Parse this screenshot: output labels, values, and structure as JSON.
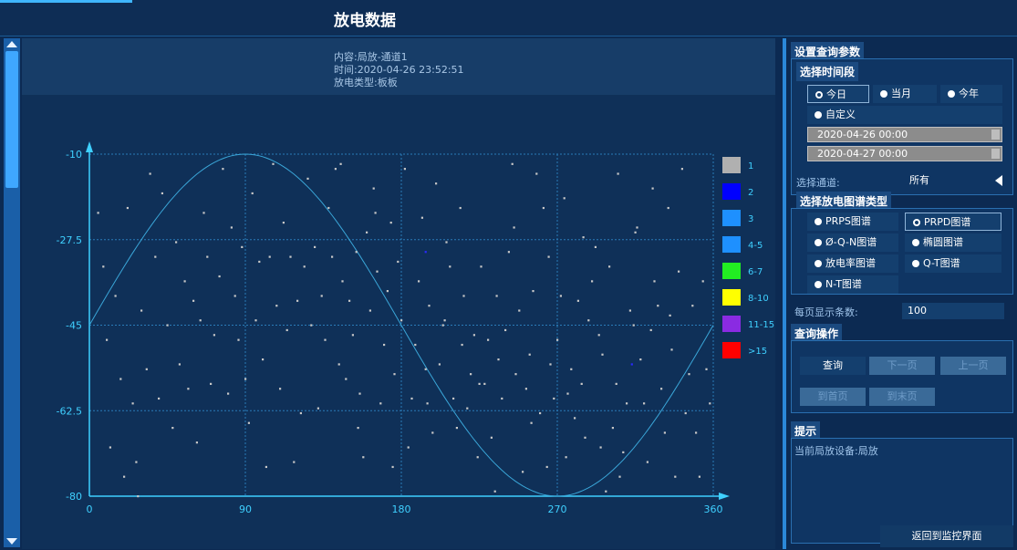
{
  "header": {
    "title": "放电数据"
  },
  "info": {
    "content": "内容:局放-通道1",
    "time": "时间:2020-04-26 23:52:51",
    "type": "放电类型:板板"
  },
  "legend": [
    {
      "label": "1",
      "color": "#b0b0b0"
    },
    {
      "label": "2",
      "color": "#0000ff"
    },
    {
      "label": "3",
      "color": "#1e90ff"
    },
    {
      "label": "4-5",
      "color": "#1e90ff"
    },
    {
      "label": "6-7",
      "color": "#22ee22"
    },
    {
      "label": "8-10",
      "color": "#ffff00"
    },
    {
      "label": "11-15",
      "color": "#8a2be2"
    },
    {
      "label": ">15",
      "color": "#ff0000"
    }
  ],
  "chart_data": {
    "type": "scatter",
    "title": "",
    "xlabel": "",
    "ylabel": "",
    "xlim": [
      0,
      360
    ],
    "ylim": [
      -80,
      -10
    ],
    "x_ticks": [
      "0",
      "90",
      "180",
      "270",
      "360"
    ],
    "y_ticks": [
      "-10",
      "-27.5",
      "-45",
      "-62.5",
      "-80"
    ],
    "grid": true,
    "reference_curve": "sine",
    "series": [
      {
        "color": "#c8c8c8",
        "points": [
          [
            5,
            -22
          ],
          [
            8,
            -33
          ],
          [
            10,
            -48
          ],
          [
            12,
            -70
          ],
          [
            15,
            -39
          ],
          [
            18,
            -56
          ],
          [
            20,
            -76
          ],
          [
            22,
            -21
          ],
          [
            25,
            -61
          ],
          [
            27,
            -73
          ],
          [
            28,
            -80
          ],
          [
            30,
            -42
          ],
          [
            33,
            -54
          ],
          [
            35,
            -14
          ],
          [
            38,
            -31
          ],
          [
            40,
            -60
          ],
          [
            42,
            -18
          ],
          [
            45,
            -45
          ],
          [
            48,
            -66
          ],
          [
            50,
            -28
          ],
          [
            52,
            -53
          ],
          [
            55,
            -36
          ],
          [
            57,
            -58
          ],
          [
            60,
            -40
          ],
          [
            62,
            -69
          ],
          [
            64,
            -44
          ],
          [
            66,
            -22
          ],
          [
            68,
            -31
          ],
          [
            70,
            -57
          ],
          [
            72,
            -47
          ],
          [
            75,
            -35
          ],
          [
            77,
            -13
          ],
          [
            80,
            -59
          ],
          [
            82,
            -25
          ],
          [
            84,
            -39
          ],
          [
            86,
            -48
          ],
          [
            88,
            -29
          ],
          [
            90,
            -56
          ],
          [
            92,
            -65
          ],
          [
            94,
            -18
          ],
          [
            96,
            -44
          ],
          [
            98,
            -32
          ],
          [
            100,
            -52
          ],
          [
            102,
            -74
          ],
          [
            104,
            -31
          ],
          [
            106,
            -12
          ],
          [
            108,
            -41
          ],
          [
            110,
            -58
          ],
          [
            112,
            -24
          ],
          [
            114,
            -46
          ],
          [
            116,
            -31
          ],
          [
            118,
            -73
          ],
          [
            120,
            -40
          ],
          [
            122,
            -63
          ],
          [
            124,
            -33
          ],
          [
            126,
            -15
          ],
          [
            128,
            -45
          ],
          [
            130,
            -29
          ],
          [
            132,
            -62
          ],
          [
            134,
            -39
          ],
          [
            136,
            -48
          ],
          [
            138,
            -21
          ],
          [
            140,
            -31
          ],
          [
            142,
            -13
          ],
          [
            144,
            -53
          ],
          [
            146,
            -36
          ],
          [
            148,
            -56
          ],
          [
            150,
            -40
          ],
          [
            152,
            -47
          ],
          [
            154,
            -30
          ],
          [
            156,
            -59
          ],
          [
            158,
            -72
          ],
          [
            160,
            -26
          ],
          [
            162,
            -42
          ],
          [
            164,
            -17
          ],
          [
            166,
            -34
          ],
          [
            168,
            -61
          ],
          [
            170,
            -49
          ],
          [
            172,
            -38
          ],
          [
            174,
            -24
          ],
          [
            176,
            -55
          ],
          [
            178,
            -32
          ],
          [
            180,
            -44
          ],
          [
            182,
            -13
          ],
          [
            184,
            -70
          ],
          [
            186,
            -60
          ],
          [
            188,
            -49
          ],
          [
            190,
            -36
          ],
          [
            192,
            -23
          ],
          [
            194,
            -54
          ],
          [
            196,
            -41
          ],
          [
            198,
            -67
          ],
          [
            200,
            -16
          ],
          [
            202,
            -53
          ],
          [
            204,
            -45
          ],
          [
            206,
            -28
          ],
          [
            208,
            -33
          ],
          [
            210,
            -60
          ],
          [
            212,
            -66
          ],
          [
            214,
            -21
          ],
          [
            216,
            -39
          ],
          [
            218,
            -62
          ],
          [
            220,
            -55
          ],
          [
            222,
            -47
          ],
          [
            224,
            -72
          ],
          [
            226,
            -33
          ],
          [
            228,
            -57
          ],
          [
            230,
            -48
          ],
          [
            232,
            -68
          ],
          [
            234,
            -79
          ],
          [
            236,
            -52
          ],
          [
            238,
            -60
          ],
          [
            240,
            -46
          ],
          [
            242,
            -30
          ],
          [
            244,
            -12
          ],
          [
            246,
            -55
          ],
          [
            248,
            -42
          ],
          [
            250,
            -75
          ],
          [
            252,
            -58
          ],
          [
            254,
            -51
          ],
          [
            256,
            -38
          ],
          [
            258,
            -14
          ],
          [
            260,
            -63
          ],
          [
            262,
            -21
          ],
          [
            264,
            -74
          ],
          [
            266,
            -53
          ],
          [
            268,
            -60
          ],
          [
            270,
            -48
          ],
          [
            272,
            -39
          ],
          [
            274,
            -19
          ],
          [
            276,
            -59
          ],
          [
            278,
            -54
          ],
          [
            280,
            -64
          ],
          [
            282,
            -40
          ],
          [
            284,
            -57
          ],
          [
            286,
            -68
          ],
          [
            288,
            -44
          ],
          [
            290,
            -36
          ],
          [
            292,
            -29
          ],
          [
            294,
            -47
          ],
          [
            296,
            -51
          ],
          [
            298,
            -79
          ],
          [
            300,
            -33
          ],
          [
            302,
            -66
          ],
          [
            304,
            -57
          ],
          [
            306,
            -76
          ],
          [
            308,
            -71
          ],
          [
            310,
            -61
          ],
          [
            312,
            -42
          ],
          [
            314,
            -45
          ],
          [
            316,
            -25
          ],
          [
            318,
            -52
          ],
          [
            320,
            -61
          ],
          [
            322,
            -73
          ],
          [
            324,
            -46
          ],
          [
            326,
            -36
          ],
          [
            328,
            -41
          ],
          [
            330,
            -58
          ],
          [
            332,
            -67
          ],
          [
            334,
            -21
          ],
          [
            336,
            -50
          ],
          [
            338,
            -76
          ],
          [
            340,
            -34
          ],
          [
            342,
            -13
          ],
          [
            344,
            -63
          ],
          [
            346,
            -55
          ],
          [
            348,
            -41
          ],
          [
            350,
            -67
          ],
          [
            352,
            -76
          ],
          [
            354,
            -36
          ],
          [
            356,
            -54
          ],
          [
            358,
            -61
          ],
          [
            145,
            -12
          ],
          [
            155,
            -66
          ],
          [
            165,
            -22
          ],
          [
            175,
            -74
          ],
          [
            195,
            -61
          ],
          [
            205,
            -44
          ],
          [
            215,
            -49
          ],
          [
            225,
            -57
          ],
          [
            235,
            -39
          ],
          [
            245,
            -25
          ],
          [
            255,
            -65
          ],
          [
            265,
            -31
          ],
          [
            275,
            -72
          ],
          [
            285,
            -27
          ],
          [
            295,
            -70
          ],
          [
            305,
            -14
          ],
          [
            315,
            -26
          ],
          [
            325,
            -17
          ],
          [
            335,
            -43
          ]
        ]
      },
      {
        "color": "#2a2aff",
        "points": [
          [
            313,
            -53
          ],
          [
            194,
            -30
          ]
        ]
      }
    ]
  },
  "panel": {
    "params_title": "设置查询参数",
    "time_title": "选择时间段",
    "time_opts": [
      "今日",
      "当月",
      "今年",
      "自定义"
    ],
    "date_from": "2020-04-26 00:00",
    "date_to": "2020-04-27 00:00",
    "channel_label": "选择通道:",
    "channel_value": "所有",
    "map_title": "选择放电图谱类型",
    "map_opts": [
      "PRPS图谱",
      "PRPD图谱",
      "Ø-Q-N图谱",
      "椭圆图谱",
      "放电率图谱",
      "Q-T图谱",
      "N-T图谱"
    ],
    "page_size_label": "每页显示条数:",
    "page_size_value": "100",
    "query_title": "查询操作",
    "btn_query": "查询",
    "btn_next": "下一页",
    "btn_prev": "上一页",
    "btn_first": "到首页",
    "btn_last": "到末页",
    "hint_title": "提示",
    "hint_text": "当前局放设备:局放",
    "return_label": "返回到监控界面"
  }
}
